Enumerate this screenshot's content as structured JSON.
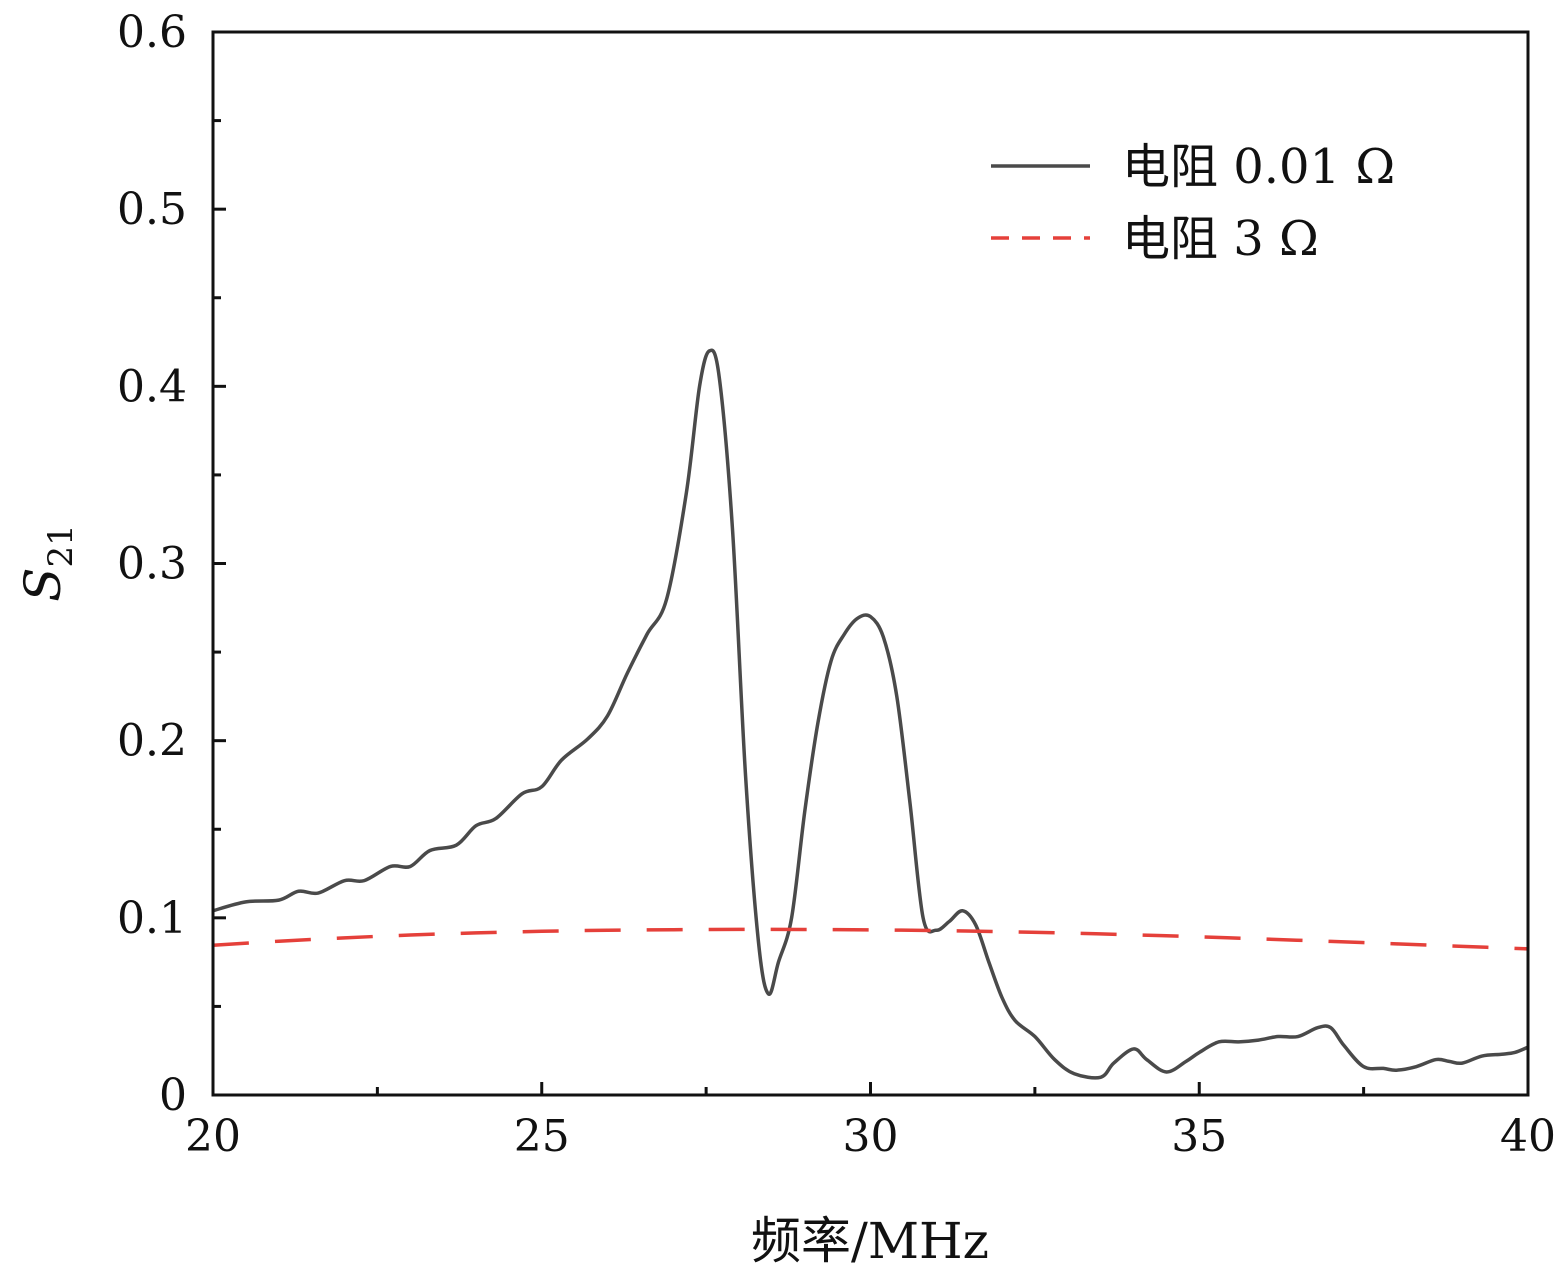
{
  "chart_data": {
    "type": "line",
    "title": "",
    "xlabel": "频率/MHz",
    "ylabel": "S",
    "ylabel_subscript": "21",
    "xlim": [
      20,
      40
    ],
    "ylim": [
      0,
      0.6
    ],
    "xticks": [
      20,
      25,
      30,
      35,
      40
    ],
    "xtick_labels": [
      "20",
      "25",
      "30",
      "35",
      "40"
    ],
    "yticks": [
      0,
      0.1,
      0.2,
      0.3,
      0.4,
      0.5,
      0.6
    ],
    "ytick_labels": [
      "0",
      "0.1",
      "0.2",
      "0.3",
      "0.4",
      "0.5",
      "0.6"
    ],
    "grid": false,
    "legend_position": "top-right",
    "series": [
      {
        "name": "电阻 0.01 Ω",
        "color": "#4a4a4a",
        "style": "solid",
        "x": [
          20.0,
          20.5,
          21.0,
          21.3,
          21.6,
          22.0,
          22.3,
          22.7,
          23.0,
          23.3,
          23.7,
          24.0,
          24.3,
          24.7,
          25.0,
          25.3,
          25.7,
          26.0,
          26.3,
          26.6,
          26.9,
          27.2,
          27.4,
          27.55,
          27.7,
          27.9,
          28.1,
          28.3,
          28.45,
          28.6,
          28.8,
          29.0,
          29.2,
          29.4,
          29.6,
          29.8,
          30.0,
          30.2,
          30.4,
          30.6,
          30.8,
          31.0,
          31.2,
          31.4,
          31.6,
          31.8,
          32.0,
          32.2,
          32.5,
          32.8,
          33.1,
          33.5,
          33.7,
          34.0,
          34.2,
          34.5,
          34.8,
          35.0,
          35.3,
          35.6,
          35.9,
          36.2,
          36.5,
          36.8,
          37.0,
          37.2,
          37.5,
          37.8,
          38.0,
          38.3,
          38.6,
          38.8,
          39.0,
          39.3,
          39.6,
          39.8,
          40.0
        ],
        "y": [
          0.104,
          0.109,
          0.11,
          0.115,
          0.114,
          0.121,
          0.121,
          0.129,
          0.129,
          0.138,
          0.141,
          0.152,
          0.156,
          0.17,
          0.174,
          0.189,
          0.201,
          0.214,
          0.238,
          0.26,
          0.28,
          0.34,
          0.4,
          0.42,
          0.405,
          0.32,
          0.18,
          0.085,
          0.057,
          0.075,
          0.1,
          0.16,
          0.21,
          0.245,
          0.26,
          0.269,
          0.27,
          0.258,
          0.225,
          0.165,
          0.1,
          0.093,
          0.098,
          0.104,
          0.096,
          0.075,
          0.055,
          0.042,
          0.033,
          0.02,
          0.012,
          0.01,
          0.018,
          0.026,
          0.02,
          0.013,
          0.019,
          0.024,
          0.03,
          0.03,
          0.031,
          0.033,
          0.033,
          0.038,
          0.038,
          0.028,
          0.016,
          0.015,
          0.014,
          0.016,
          0.02,
          0.019,
          0.018,
          0.022,
          0.023,
          0.024,
          0.027
        ]
      },
      {
        "name": "电阻 3 Ω",
        "color": "#e5403a",
        "style": "dashed",
        "x": [
          20,
          21,
          22,
          23,
          24,
          25,
          26,
          27,
          28,
          29,
          30,
          31,
          32,
          33,
          34,
          35,
          36,
          37,
          38,
          39,
          40
        ],
        "y": [
          0.0845,
          0.0868,
          0.0887,
          0.0903,
          0.0915,
          0.0924,
          0.093,
          0.0933,
          0.0935,
          0.0934,
          0.0932,
          0.0928,
          0.0922,
          0.0914,
          0.0904,
          0.0893,
          0.088,
          0.0867,
          0.0853,
          0.0839,
          0.0825
        ]
      }
    ]
  }
}
